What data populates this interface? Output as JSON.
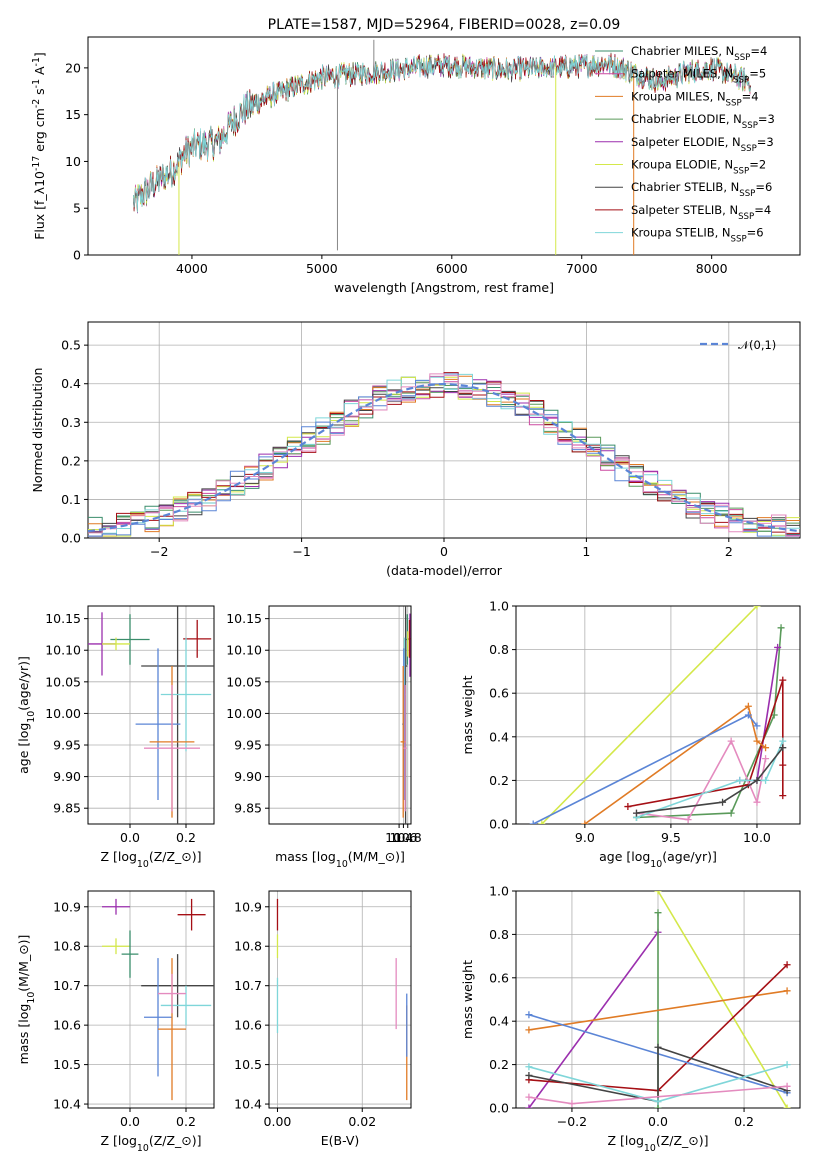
{
  "figure_title": "PLATE=1587, MJD=52964, FIBERID=0028, z=0.09",
  "colors": {
    "Chabrier MILES": "#3a8d6b",
    "Salpeter MILES": "#cc4aa0",
    "Kroupa MILES": "#e07b25",
    "Chabrier ELODIE": "#5a9a5a",
    "Salpeter ELODIE": "#9b2fae",
    "Kroupa ELODIE": "#d4e84a",
    "Chabrier STELIB": "#444444",
    "Salpeter STELIB": "#a50f15",
    "Kroupa STELIB": "#7fd6d9",
    "blue": "#5b85d6",
    "pink": "#e48bbf"
  },
  "chart_data": [
    {
      "id": "spectrum",
      "type": "line",
      "xlabel": "wavelength [Angstrom, rest frame]",
      "ylabel": "Flux [f$_\\lambda$10$^{-17}$ erg cm$^{-2}$ s$^{-1}$ A$^{-1}$]",
      "xlim": [
        3200,
        8680
      ],
      "ylim": [
        0,
        23.3
      ],
      "xticks": [
        4000,
        5000,
        6000,
        7000,
        8000
      ],
      "yticks": [
        0,
        5,
        10,
        15,
        20
      ],
      "grid": false,
      "legend_position": "upper right",
      "legend": [
        "Chabrier MILES, N$_{SSP}$=4",
        "Salpeter MILES, N$_{SSP}$=5",
        "Kroupa MILES, N$_{SSP}$=4",
        "Chabrier ELODIE, N$_{SSP}$=3",
        "Salpeter ELODIE, N$_{SSP}$=3",
        "Kroupa ELODIE, N$_{SSP}$=2",
        "Chabrier STELIB, N$_{SSP}$=6",
        "Salpeter STELIB, N$_{SSP}$=4",
        "Kroupa STELIB, N$_{SSP}$=6"
      ],
      "continuum_x": [
        3550,
        3700,
        3850,
        3950,
        4050,
        4200,
        4300,
        4400,
        4600,
        4800,
        5000,
        5200,
        5400,
        5600,
        5800,
        6000,
        6200,
        6400,
        6600,
        6800,
        7000,
        7200,
        7400,
        7600,
        7800,
        8000,
        8200,
        8300
      ],
      "continuum_y": [
        5.5,
        7.5,
        9.0,
        11.0,
        11.8,
        12.0,
        14.0,
        15.5,
        17.0,
        18.0,
        19.0,
        19.3,
        19.5,
        19.8,
        20.2,
        20.3,
        20.0,
        19.8,
        19.9,
        20.0,
        20.2,
        20.5,
        19.5,
        18.5,
        19.5,
        20.0,
        19.0,
        18.5
      ]
    },
    {
      "id": "residuals",
      "type": "histogram",
      "xlabel": "(data-model)/error",
      "ylabel": "Normed distribution",
      "xlim": [
        -2.5,
        2.5
      ],
      "ylim": [
        0,
        0.56
      ],
      "xticks": [
        -2,
        -1,
        0,
        1,
        2
      ],
      "yticks": [
        0.0,
        0.1,
        0.2,
        0.3,
        0.4,
        0.5
      ],
      "grid": true,
      "legend_position": "upper right",
      "legend": [
        "$\\mathcal{N}(0,1)$"
      ],
      "bin_width": 0.1
    },
    {
      "id": "z-age",
      "type": "errorbar",
      "xlabel": "Z [log$_{10}$($Z/Z_\\odot$)]",
      "ylabel": "age  [log$_{10}$($age/yr$)]",
      "xlim": [
        -0.15,
        0.3
      ],
      "ylim": [
        9.825,
        10.17
      ],
      "xticks": [
        0.0,
        0.2
      ],
      "yticks": [
        9.85,
        9.9,
        9.95,
        10.0,
        10.05,
        10.1,
        10.15
      ],
      "grid": true,
      "points": [
        {
          "series": "Chabrier MILES",
          "x": 0.0,
          "y": 10.117,
          "xerr": 0.07,
          "yerr": 0.04
        },
        {
          "series": "Salpeter ELODIE",
          "x": -0.1,
          "y": 10.11,
          "xerr": 0.05,
          "yerr": 0.05
        },
        {
          "series": "Kroupa ELODIE",
          "x": -0.05,
          "y": 10.11,
          "xerr": 0.05,
          "yerr": 0.01
        },
        {
          "series": "Salpeter STELIB",
          "x": 0.24,
          "y": 10.118,
          "xerr": 0.05,
          "yerr": 0.03
        },
        {
          "series": "Chabrier STELIB",
          "x": 0.17,
          "y": 10.075,
          "xerr": 0.13,
          "yerr": 0.25
        },
        {
          "series": "Kroupa STELIB",
          "x": 0.2,
          "y": 10.03,
          "xerr": 0.09,
          "yerr": 0.09
        },
        {
          "series": "blue",
          "x": 0.1,
          "y": 9.983,
          "xerr": 0.08,
          "yerr": 0.12
        },
        {
          "series": "Kroupa MILES",
          "x": 0.15,
          "y": 9.955,
          "xerr": 0.08,
          "yerr": 0.12
        },
        {
          "series": "pink",
          "x": 0.15,
          "y": 9.945,
          "xerr": 0.1,
          "yerr": 0.1
        }
      ]
    },
    {
      "id": "mass-age",
      "type": "errorbar",
      "xlabel": "mass [log$_{10}$($M/M_\\odot$)]",
      "ylabel": "",
      "xlim": [
        4.39,
        10.95
      ],
      "ylim": [
        9.825,
        10.17
      ],
      "xticks": [
        10.4,
        10.6,
        10.8
      ],
      "yticks": [
        9.85,
        9.9,
        9.95,
        10.0,
        10.05,
        10.1,
        10.15
      ],
      "grid": true,
      "points": [
        {
          "series": "Chabrier MILES",
          "x": 10.78,
          "y": 10.117,
          "xerr": 0.06,
          "yerr": 0.04
        },
        {
          "series": "Salpeter ELODIE",
          "x": 10.9,
          "y": 10.108,
          "xerr": 0.02,
          "yerr": 0.05
        },
        {
          "series": "Kroupa ELODIE",
          "x": 10.8,
          "y": 10.11,
          "xerr": 0.02,
          "yerr": 0.02
        },
        {
          "series": "Salpeter STELIB",
          "x": 10.88,
          "y": 10.118,
          "xerr": 0.04,
          "yerr": 0.03
        },
        {
          "series": "Chabrier STELIB",
          "x": 10.7,
          "y": 10.075,
          "xerr": 0.08,
          "yerr": 0.25
        },
        {
          "series": "Kroupa STELIB",
          "x": 10.65,
          "y": 10.03,
          "xerr": 0.05,
          "yerr": 0.09
        },
        {
          "series": "blue",
          "x": 10.62,
          "y": 9.983,
          "xerr": 0.08,
          "yerr": 0.12
        },
        {
          "series": "Kroupa MILES",
          "x": 10.59,
          "y": 9.955,
          "xerr": 0.12,
          "yerr": 0.12
        },
        {
          "series": "pink",
          "x": 10.68,
          "y": 9.945,
          "xerr": 0.08,
          "yerr": 0.1
        }
      ]
    },
    {
      "id": "age-weight",
      "type": "line",
      "xlabel": "age  [log$_{10}$($age/yr$)]",
      "ylabel": "mass weight",
      "xlim": [
        8.6,
        10.25
      ],
      "ylim": [
        0,
        1.0
      ],
      "xticks": [
        9.0,
        9.5,
        10.0
      ],
      "yticks": [
        0.0,
        0.2,
        0.4,
        0.6,
        0.8,
        1.0
      ],
      "grid": true,
      "series": [
        {
          "color_key": "Kroupa ELODIE",
          "x": [
            8.75,
            10.0
          ],
          "y": [
            0.0,
            1.0
          ]
        },
        {
          "color_key": "Chabrier ELODIE",
          "x": [
            9.3,
            9.85,
            10.1,
            10.14
          ],
          "y": [
            0.03,
            0.05,
            0.5,
            0.9
          ]
        },
        {
          "color_key": "Salpeter ELODIE",
          "x": [
            9.9,
            10.0,
            10.12
          ],
          "y": [
            0.2,
            0.2,
            0.81
          ]
        },
        {
          "color_key": "Salpeter STELIB",
          "x": [
            9.25,
            9.95,
            10.15,
            10.15,
            10.15
          ],
          "y": [
            0.08,
            0.18,
            0.66,
            0.27,
            0.13
          ]
        },
        {
          "color_key": "Kroupa MILES",
          "x": [
            9.0,
            9.95,
            10.0,
            10.05
          ],
          "y": [
            0.0,
            0.54,
            0.38,
            0.35
          ]
        },
        {
          "color_key": "blue",
          "x": [
            8.7,
            9.95,
            10.0
          ],
          "y": [
            0.0,
            0.5,
            0.45
          ]
        },
        {
          "color_key": "pink",
          "x": [
            9.3,
            9.6,
            9.85,
            10.0,
            10.05
          ],
          "y": [
            0.05,
            0.02,
            0.38,
            0.1,
            0.3
          ]
        },
        {
          "color_key": "Kroupa STELIB",
          "x": [
            9.3,
            9.9,
            10.05,
            10.15
          ],
          "y": [
            0.03,
            0.2,
            0.2,
            0.38
          ]
        },
        {
          "color_key": "Chabrier STELIB",
          "x": [
            9.3,
            9.8,
            10.0,
            10.15
          ],
          "y": [
            0.05,
            0.1,
            0.2,
            0.35
          ]
        }
      ]
    },
    {
      "id": "z-mass",
      "type": "errorbar",
      "xlabel": "Z [log$_{10}$($Z/Z_\\odot$)]",
      "ylabel": "mass [log$_{10}$($M/M_\\odot$)]",
      "xlim": [
        -0.15,
        0.3
      ],
      "ylim": [
        10.39,
        10.94
      ],
      "xticks": [
        0.0,
        0.2
      ],
      "yticks": [
        10.4,
        10.5,
        10.6,
        10.7,
        10.8,
        10.9
      ],
      "grid": true,
      "points": [
        {
          "series": "Salpeter ELODIE",
          "x": -0.05,
          "y": 10.9,
          "xerr": 0.05,
          "yerr": 0.02
        },
        {
          "series": "Salpeter STELIB",
          "x": 0.22,
          "y": 10.88,
          "xerr": 0.05,
          "yerr": 0.04
        },
        {
          "series": "Kroupa ELODIE",
          "x": -0.05,
          "y": 10.8,
          "xerr": 0.05,
          "yerr": 0.02
        },
        {
          "series": "Chabrier MILES",
          "x": 0.0,
          "y": 10.78,
          "xerr": 0.03,
          "yerr": 0.06
        },
        {
          "series": "Chabrier STELIB",
          "x": 0.17,
          "y": 10.7,
          "xerr": 0.13,
          "yerr": 0.08
        },
        {
          "series": "Kroupa STELIB",
          "x": 0.2,
          "y": 10.65,
          "xerr": 0.09,
          "yerr": 0.05
        },
        {
          "series": "blue",
          "x": 0.1,
          "y": 10.62,
          "xerr": 0.05,
          "yerr": 0.15
        },
        {
          "series": "Kroupa MILES",
          "x": 0.15,
          "y": 10.59,
          "xerr": 0.05,
          "yerr": 0.18
        },
        {
          "series": "pink",
          "x": 0.15,
          "y": 10.68,
          "xerr": 0.05,
          "yerr": 0.05
        }
      ]
    },
    {
      "id": "ebv-mass",
      "type": "errorbar",
      "xlabel": "E(B-V)",
      "ylabel": "",
      "xlim": [
        -0.002,
        0.0315
      ],
      "ylim": [
        10.39,
        10.94
      ],
      "xticks": [
        0.0,
        0.02
      ],
      "yticks": [
        10.4,
        10.5,
        10.6,
        10.7,
        10.8,
        10.9
      ],
      "grid": true,
      "points": [
        {
          "series": "Salpeter STELIB",
          "x": 0.0,
          "y": 10.88,
          "xerr": 0.0,
          "yerr": 0.04
        },
        {
          "series": "Kroupa ELODIE",
          "x": 0.0,
          "y": 10.8,
          "xerr": 0.0,
          "yerr": 0.03
        },
        {
          "series": "Kroupa STELIB",
          "x": 0.0,
          "y": 10.65,
          "xerr": 0.0,
          "yerr": 0.07
        },
        {
          "series": "pink",
          "x": 0.028,
          "y": 10.68,
          "xerr": 0.0,
          "yerr": 0.09
        },
        {
          "series": "Kroupa MILES",
          "x": 0.0305,
          "y": 10.53,
          "xerr": 0.0,
          "yerr": 0.12
        },
        {
          "series": "blue",
          "x": 0.0305,
          "y": 10.6,
          "xerr": 0.0,
          "yerr": 0.08
        }
      ]
    },
    {
      "id": "z-weight",
      "type": "line",
      "xlabel": "Z [log$_{10}$($Z/Z_\\odot$)]",
      "ylabel": "mass weight",
      "xlim": [
        -0.33,
        0.33
      ],
      "ylim": [
        0,
        1.0
      ],
      "xticks": [
        -0.2,
        0.0,
        0.2
      ],
      "yticks": [
        0.0,
        0.2,
        0.4,
        0.6,
        0.8,
        1.0
      ],
      "grid": true,
      "series": [
        {
          "color_key": "Kroupa ELODIE",
          "x": [
            0.0,
            0.3
          ],
          "y": [
            1.0,
            0.0
          ]
        },
        {
          "color_key": "Salpeter ELODIE",
          "x": [
            -0.3,
            0.0
          ],
          "y": [
            0.0,
            0.81
          ]
        },
        {
          "color_key": "Chabrier ELODIE",
          "x": [
            0.0,
            0.0
          ],
          "y": [
            0.0,
            0.9
          ]
        },
        {
          "color_key": "Kroupa MILES",
          "x": [
            -0.3,
            0.3
          ],
          "y": [
            0.36,
            0.54
          ]
        },
        {
          "color_key": "Salpeter STELIB",
          "x": [
            -0.3,
            0.0,
            0.3
          ],
          "y": [
            0.13,
            0.08,
            0.66
          ]
        },
        {
          "color_key": "blue",
          "x": [
            -0.3,
            0.3
          ],
          "y": [
            0.43,
            0.07
          ]
        },
        {
          "color_key": "Chabrier STELIB",
          "x": [
            -0.3,
            0.0,
            0.0,
            0.3
          ],
          "y": [
            0.15,
            0.03,
            0.28,
            0.08
          ]
        },
        {
          "color_key": "Kroupa STELIB",
          "x": [
            -0.3,
            0.0,
            0.3
          ],
          "y": [
            0.19,
            0.03,
            0.2
          ]
        },
        {
          "color_key": "pink",
          "x": [
            -0.3,
            -0.2,
            0.3
          ],
          "y": [
            0.05,
            0.02,
            0.1
          ]
        }
      ]
    }
  ]
}
